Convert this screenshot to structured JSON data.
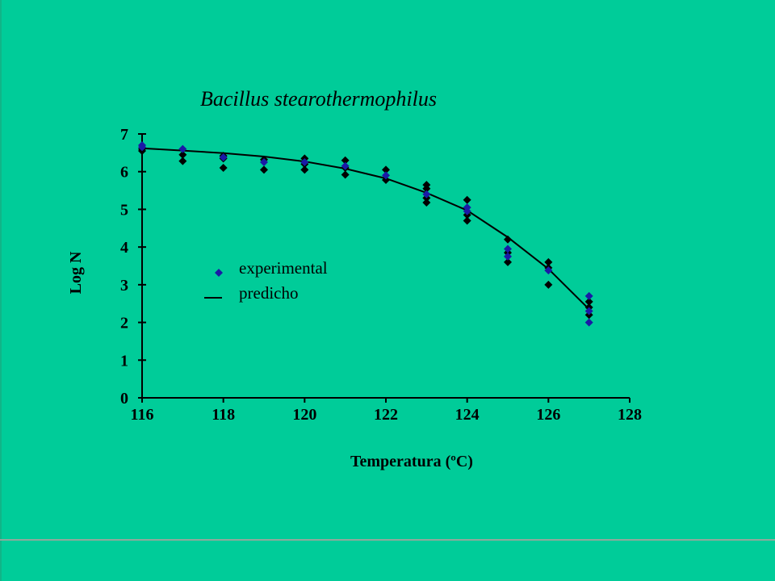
{
  "chart_data": {
    "type": "scatter",
    "title": "Bacillus stearothermophilus",
    "xlabel": "Temperatura (ºC)",
    "ylabel": "Log N",
    "xlim": [
      116,
      128
    ],
    "ylim": [
      0,
      7
    ],
    "xticks": [
      "116",
      "118",
      "120",
      "122",
      "124",
      "126",
      "128"
    ],
    "yticks": [
      "0",
      "1",
      "2",
      "3",
      "4",
      "5",
      "6",
      "7"
    ],
    "grid": false,
    "legend_position": "inside-left",
    "legend": [
      {
        "label": "experimental",
        "marker": "diamond",
        "color": "#1A1AA6"
      },
      {
        "label": "predicho",
        "marker": "line",
        "color": "#000000"
      }
    ],
    "series": [
      {
        "name": "experimental",
        "marker": "diamond",
        "colors": {
          "fill": "#000000",
          "highlight": "#1A1AA6"
        },
        "points": [
          {
            "x": 116,
            "y": 6.7
          },
          {
            "x": 116,
            "y": 6.65
          },
          {
            "x": 116,
            "y": 6.6
          },
          {
            "x": 116,
            "y": 6.55
          },
          {
            "x": 117,
            "y": 6.6
          },
          {
            "x": 117,
            "y": 6.45
          },
          {
            "x": 117,
            "y": 6.28
          },
          {
            "x": 118,
            "y": 6.42
          },
          {
            "x": 118,
            "y": 6.38
          },
          {
            "x": 118,
            "y": 6.35
          },
          {
            "x": 118,
            "y": 6.1
          },
          {
            "x": 119,
            "y": 6.32
          },
          {
            "x": 119,
            "y": 6.25
          },
          {
            "x": 119,
            "y": 6.05
          },
          {
            "x": 120,
            "y": 6.35
          },
          {
            "x": 120,
            "y": 6.25
          },
          {
            "x": 120,
            "y": 6.2
          },
          {
            "x": 120,
            "y": 6.05
          },
          {
            "x": 121,
            "y": 6.3
          },
          {
            "x": 121,
            "y": 6.15
          },
          {
            "x": 121,
            "y": 6.1
          },
          {
            "x": 121,
            "y": 5.92
          },
          {
            "x": 122,
            "y": 6.05
          },
          {
            "x": 122,
            "y": 5.9
          },
          {
            "x": 122,
            "y": 5.78
          },
          {
            "x": 123,
            "y": 5.65
          },
          {
            "x": 123,
            "y": 5.55
          },
          {
            "x": 123,
            "y": 5.4
          },
          {
            "x": 123,
            "y": 5.3
          },
          {
            "x": 123,
            "y": 5.18
          },
          {
            "x": 124,
            "y": 5.25
          },
          {
            "x": 124,
            "y": 5.05
          },
          {
            "x": 124,
            "y": 4.95
          },
          {
            "x": 124,
            "y": 4.85
          },
          {
            "x": 124,
            "y": 4.7
          },
          {
            "x": 125,
            "y": 4.2
          },
          {
            "x": 125,
            "y": 3.95
          },
          {
            "x": 125,
            "y": 3.85
          },
          {
            "x": 125,
            "y": 3.75
          },
          {
            "x": 125,
            "y": 3.6
          },
          {
            "x": 126,
            "y": 3.6
          },
          {
            "x": 126,
            "y": 3.45
          },
          {
            "x": 126,
            "y": 3.38
          },
          {
            "x": 126,
            "y": 3.0
          },
          {
            "x": 127,
            "y": 2.7
          },
          {
            "x": 127,
            "y": 2.55
          },
          {
            "x": 127,
            "y": 2.4
          },
          {
            "x": 127,
            "y": 2.3
          },
          {
            "x": 127,
            "y": 2.2
          },
          {
            "x": 127,
            "y": 2.0
          }
        ],
        "highlighted": [
          0,
          1,
          4,
          8,
          12,
          15,
          19,
          23,
          27,
          31,
          32,
          36,
          38,
          42,
          44,
          47,
          49
        ]
      },
      {
        "name": "predicho",
        "marker": "line",
        "color": "#000000",
        "x": [
          116,
          117,
          118,
          119,
          120,
          121,
          122,
          123,
          124,
          125,
          126,
          127
        ],
        "y": [
          6.62,
          6.56,
          6.49,
          6.4,
          6.27,
          6.08,
          5.82,
          5.44,
          4.97,
          4.26,
          3.42,
          2.35
        ]
      }
    ]
  }
}
